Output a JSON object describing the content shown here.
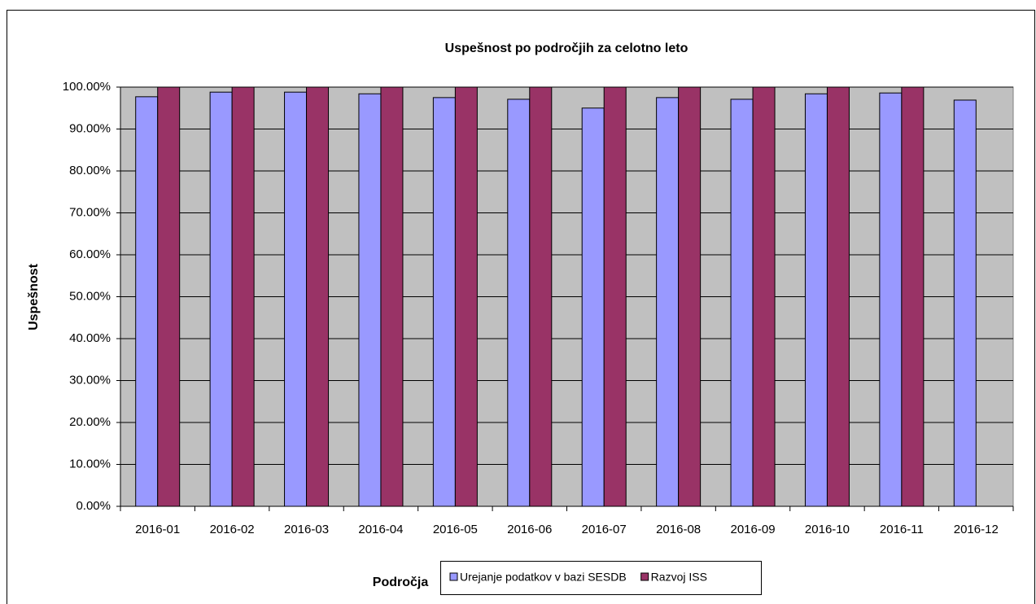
{
  "chart_data": {
    "type": "bar",
    "title": "Uspešnost po področjih za celotno leto",
    "x_label": "Področja",
    "y_label": "Uspešnost",
    "categories": [
      "2016-01",
      "2016-02",
      "2016-03",
      "2016-04",
      "2016-05",
      "2016-06",
      "2016-07",
      "2016-08",
      "2016-09",
      "2016-10",
      "2016-11",
      "2016-12"
    ],
    "series": [
      {
        "name": "Urejanje podatkov v bazi SESDB",
        "color": "#9999ff",
        "values": [
          97.7,
          98.8,
          98.8,
          98.4,
          97.5,
          97.1,
          95.0,
          97.5,
          97.1,
          98.4,
          98.6,
          96.9
        ]
      },
      {
        "name": "Razvoj ISS",
        "color": "#993366",
        "values": [
          100,
          100,
          100,
          100,
          100,
          100,
          100,
          100,
          100,
          100,
          100,
          null
        ]
      }
    ],
    "ylim": [
      0,
      100
    ],
    "yticks": [
      {
        "value": 0,
        "label": "0.00%"
      },
      {
        "value": 10,
        "label": "10.00%"
      },
      {
        "value": 20,
        "label": "20.00%"
      },
      {
        "value": 30,
        "label": "30.00%"
      },
      {
        "value": 40,
        "label": "40.00%"
      },
      {
        "value": 50,
        "label": "50.00%"
      },
      {
        "value": 60,
        "label": "60.00%"
      },
      {
        "value": 70,
        "label": "70.00%"
      },
      {
        "value": 80,
        "label": "80.00%"
      },
      {
        "value": 90,
        "label": "90.00%"
      },
      {
        "value": 100,
        "label": "100.00%"
      }
    ],
    "grid": true,
    "legend": "bottom",
    "plot_background": "#c0c0c0"
  }
}
